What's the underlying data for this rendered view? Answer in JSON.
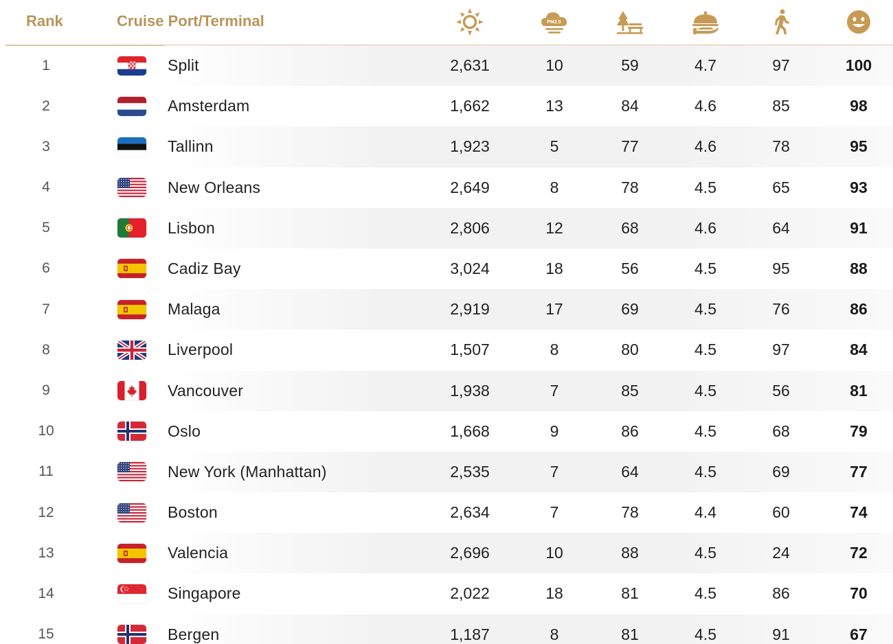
{
  "header": {
    "rank_label": "Rank",
    "port_label": "Cruise Port/Terminal",
    "metric_icons": [
      "sun-icon",
      "pm25-cloud-icon",
      "park-bench-icon",
      "food-cloche-icon",
      "walking-person-icon",
      "smiley-icon"
    ],
    "pm_icon_text": "PM2.5",
    "accent_color": "#b8955a"
  },
  "rows": [
    {
      "rank": "1",
      "flag": "croatia-flag-icon",
      "name": "Split",
      "sun": "2,631",
      "pm": "10",
      "park": "59",
      "food": "4.7",
      "walk": "97",
      "score": "100"
    },
    {
      "rank": "2",
      "flag": "netherlands-flag-icon",
      "name": "Amsterdam",
      "sun": "1,662",
      "pm": "13",
      "park": "84",
      "food": "4.6",
      "walk": "85",
      "score": "98"
    },
    {
      "rank": "3",
      "flag": "estonia-flag-icon",
      "name": "Tallinn",
      "sun": "1,923",
      "pm": "5",
      "park": "77",
      "food": "4.6",
      "walk": "78",
      "score": "95"
    },
    {
      "rank": "4",
      "flag": "usa-flag-icon",
      "name": "New Orleans",
      "sun": "2,649",
      "pm": "8",
      "park": "78",
      "food": "4.5",
      "walk": "65",
      "score": "93"
    },
    {
      "rank": "5",
      "flag": "portugal-flag-icon",
      "name": "Lisbon",
      "sun": "2,806",
      "pm": "12",
      "park": "68",
      "food": "4.6",
      "walk": "64",
      "score": "91"
    },
    {
      "rank": "6",
      "flag": "spain-flag-icon",
      "name": "Cadiz Bay",
      "sun": "3,024",
      "pm": "18",
      "park": "56",
      "food": "4.5",
      "walk": "95",
      "score": "88"
    },
    {
      "rank": "7",
      "flag": "spain-flag-icon",
      "name": "Malaga",
      "sun": "2,919",
      "pm": "17",
      "park": "69",
      "food": "4.5",
      "walk": "76",
      "score": "86"
    },
    {
      "rank": "8",
      "flag": "uk-flag-icon",
      "name": "Liverpool",
      "sun": "1,507",
      "pm": "8",
      "park": "80",
      "food": "4.5",
      "walk": "97",
      "score": "84"
    },
    {
      "rank": "9",
      "flag": "canada-flag-icon",
      "name": "Vancouver",
      "sun": "1,938",
      "pm": "7",
      "park": "85",
      "food": "4.5",
      "walk": "56",
      "score": "81"
    },
    {
      "rank": "10",
      "flag": "norway-flag-icon",
      "name": "Oslo",
      "sun": "1,668",
      "pm": "9",
      "park": "86",
      "food": "4.5",
      "walk": "68",
      "score": "79"
    },
    {
      "rank": "11",
      "flag": "usa-flag-icon",
      "name": "New York (Manhattan)",
      "sun": "2,535",
      "pm": "7",
      "park": "64",
      "food": "4.5",
      "walk": "69",
      "score": "77"
    },
    {
      "rank": "12",
      "flag": "usa-flag-icon",
      "name": "Boston",
      "sun": "2,634",
      "pm": "7",
      "park": "78",
      "food": "4.4",
      "walk": "60",
      "score": "74"
    },
    {
      "rank": "13",
      "flag": "spain-flag-icon",
      "name": "Valencia",
      "sun": "2,696",
      "pm": "10",
      "park": "88",
      "food": "4.5",
      "walk": "24",
      "score": "72"
    },
    {
      "rank": "14",
      "flag": "singapore-flag-icon",
      "name": "Singapore",
      "sun": "2,022",
      "pm": "18",
      "park": "81",
      "food": "4.5",
      "walk": "86",
      "score": "70"
    },
    {
      "rank": "15",
      "flag": "norway-flag-icon",
      "name": "Bergen",
      "sun": "1,187",
      "pm": "8",
      "park": "81",
      "food": "4.5",
      "walk": "91",
      "score": "67"
    }
  ]
}
